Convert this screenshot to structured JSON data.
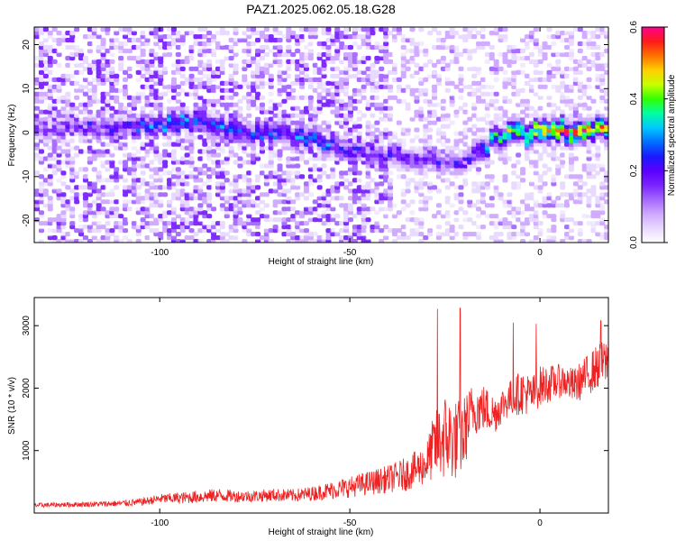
{
  "figure": {
    "title": "PAZ1.2025.062.05.18.G28"
  },
  "colors": {
    "snr_line": "#ee2222",
    "colormap": [
      "#ffffff",
      "#e8d8ff",
      "#cfa8ff",
      "#a468ff",
      "#7a22ff",
      "#5a00ff",
      "#1a1aff",
      "#0070ff",
      "#00c8ff",
      "#00ffa0",
      "#33ff00",
      "#c8ff00",
      "#ffd000",
      "#ff7000",
      "#ff1a1a",
      "#ff0090"
    ]
  },
  "chart_data": [
    {
      "type": "heatmap",
      "xlabel": "Height of straight line (km)",
      "ylabel": "Frequency (Hz)",
      "xlim": [
        -133,
        18
      ],
      "ylim": [
        -25,
        24
      ],
      "xticks": [
        -100,
        -50,
        0
      ],
      "yticks": [
        20,
        10,
        0,
        -10,
        -20
      ],
      "colorbar": {
        "label": "Normalized spectral amplitude",
        "range": [
          0.0,
          0.6
        ],
        "ticks": [
          0.0,
          0.2,
          0.4,
          0.6
        ]
      },
      "ridge": {
        "description": "dominant frequency track",
        "x": [
          -133,
          -120,
          -110,
          -100,
          -90,
          -80,
          -70,
          -60,
          -50,
          -40,
          -30,
          -20,
          -10,
          0,
          10,
          18
        ],
        "freq": [
          1,
          2,
          1,
          2,
          3,
          0,
          0,
          -1,
          -4,
          -5,
          -6,
          -7,
          0,
          0,
          1,
          2
        ],
        "amplitude": [
          0.15,
          0.2,
          0.22,
          0.3,
          0.32,
          0.25,
          0.27,
          0.3,
          0.22,
          0.24,
          0.2,
          0.2,
          0.4,
          0.5,
          0.55,
          0.45
        ]
      }
    },
    {
      "type": "line",
      "xlabel": "Height of straight line (km)",
      "ylabel": "SNR (10 * v/v)",
      "xlim": [
        -133,
        18
      ],
      "ylim": [
        0,
        3450
      ],
      "xticks": [
        -100,
        -50,
        0
      ],
      "yticks": [
        1000,
        2000,
        3000
      ],
      "series": [
        {
          "x": [
            -133,
            -125,
            -115,
            -110,
            -105,
            -100,
            -95,
            -90,
            -85,
            -80,
            -75,
            -70,
            -65,
            -60,
            -55,
            -50,
            -45,
            -40,
            -35,
            -30,
            -28,
            -25,
            -22,
            -20,
            -18,
            -15,
            -12,
            -10,
            -8,
            -5,
            -2,
            0,
            3,
            6,
            9,
            12,
            15,
            18
          ],
          "mean": [
            120,
            130,
            140,
            150,
            170,
            220,
            230,
            250,
            270,
            260,
            260,
            280,
            270,
            300,
            350,
            400,
            460,
            520,
            600,
            750,
            1000,
            1150,
            1100,
            1200,
            1600,
            1650,
            1550,
            1700,
            1800,
            1900,
            1850,
            2000,
            2050,
            2100,
            2000,
            2150,
            2300,
            2400
          ],
          "spread": [
            60,
            60,
            70,
            80,
            90,
            120,
            140,
            160,
            170,
            150,
            150,
            160,
            160,
            180,
            220,
            260,
            300,
            340,
            420,
            500,
            800,
            1100,
            1000,
            950,
            650,
            600,
            500,
            450,
            450,
            550,
            500,
            500,
            450,
            400,
            450,
            500,
            550,
            600
          ],
          "peaks": [
            {
              "x": -27,
              "y": 3270
            },
            {
              "x": -21,
              "y": 3280
            },
            {
              "x": -7,
              "y": 3050
            },
            {
              "x": -1,
              "y": 3030
            },
            {
              "x": 16,
              "y": 3080
            }
          ]
        }
      ]
    }
  ]
}
